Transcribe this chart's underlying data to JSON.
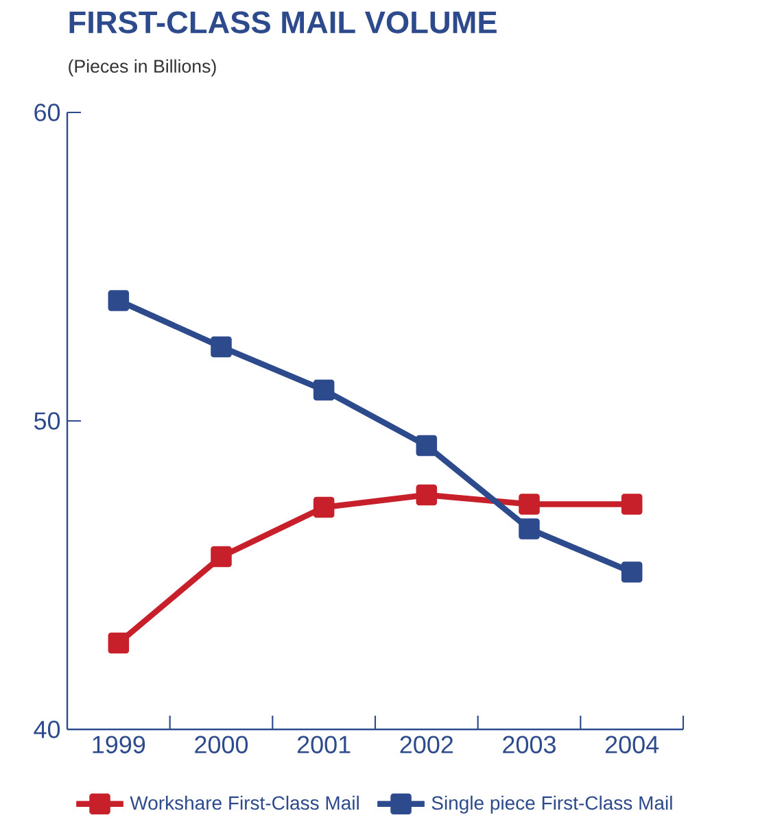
{
  "chart_data": {
    "type": "line",
    "title": "FIRST-CLASS MAIL VOLUME",
    "subtitle": "(Pieces in Billions)",
    "categories": [
      "1999",
      "2000",
      "2001",
      "2002",
      "2003",
      "2004"
    ],
    "series": [
      {
        "name": "Workshare First-Class Mail",
        "color": "#c8202a",
        "values": [
          42.8,
          45.6,
          47.2,
          47.6,
          47.3,
          47.3
        ]
      },
      {
        "name": "Single piece First-Class Mail",
        "color": "#2c4a8c",
        "values": [
          53.9,
          52.4,
          51.0,
          49.2,
          46.5,
          45.1
        ]
      }
    ],
    "ylim": [
      40,
      60
    ],
    "yticks": [
      40,
      50,
      60
    ],
    "legend": "bottom",
    "marker": "square",
    "line_style": "solid",
    "grid": false
  }
}
